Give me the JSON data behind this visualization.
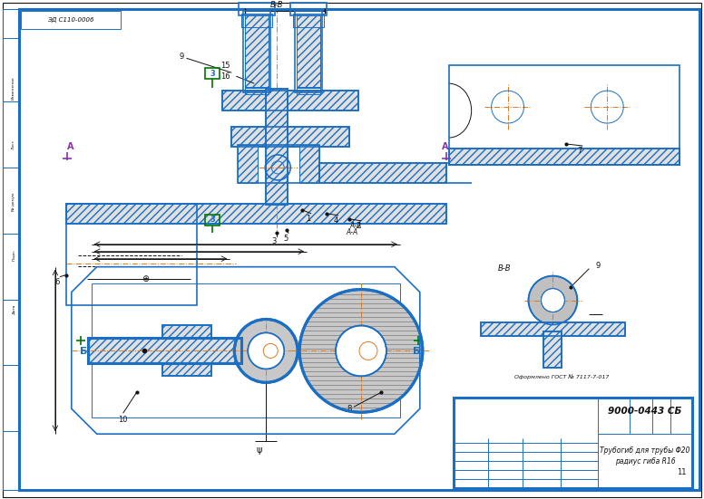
{
  "bg_color": "#ffffff",
  "line_color_blue": "#1a6fc4",
  "line_color_orange": "#e07820",
  "line_color_black": "#111111",
  "line_color_green": "#007700",
  "line_color_purple": "#8833aa",
  "title": "9000-0443 СБ",
  "doc_num": "ЭД С110-0006",
  "drawing_title1": "Трубогиб для трубы Φ20",
  "drawing_title2": "радиус гиба R16",
  "stamp_note": "Оформлено ГОСТ № 7117-7-017"
}
